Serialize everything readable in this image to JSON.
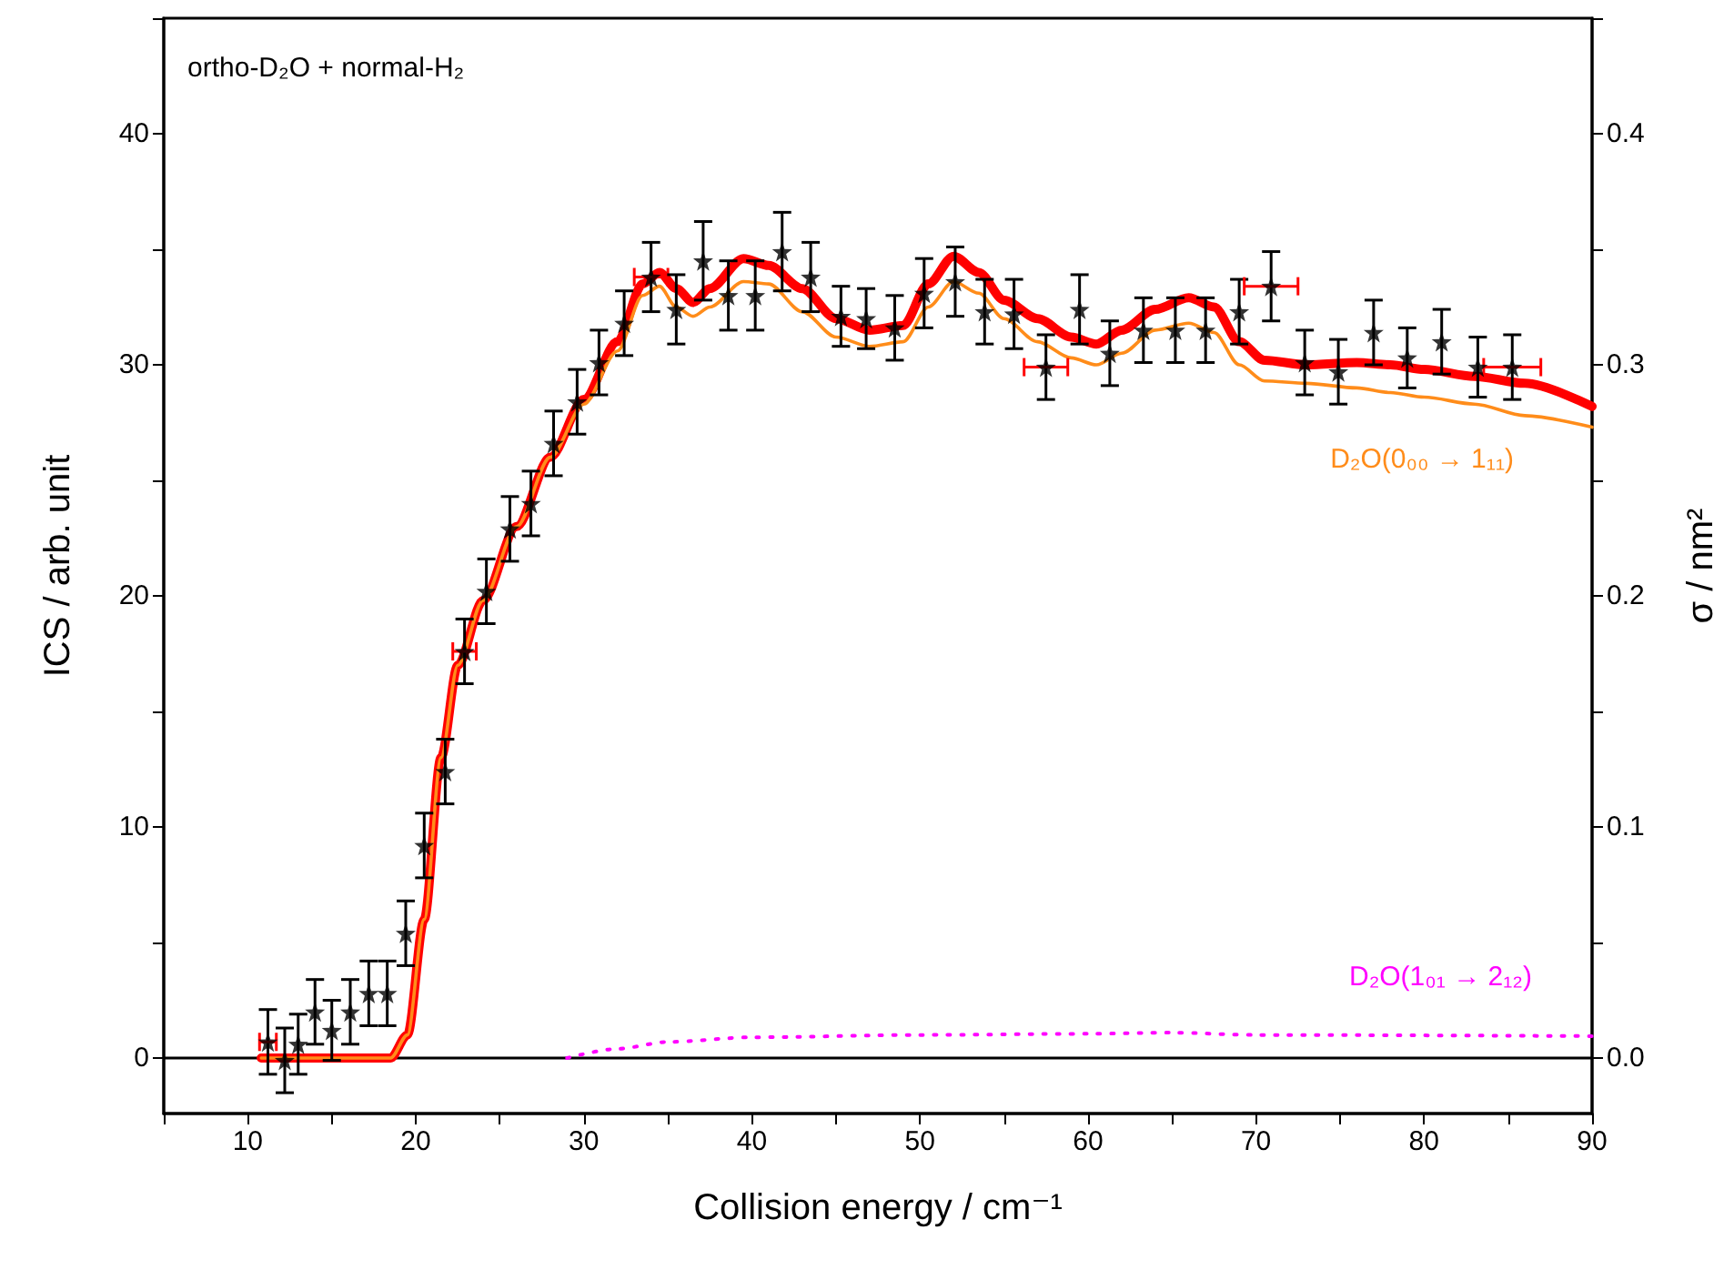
{
  "chart_data": {
    "type": "scatter",
    "xlabel": "Collision energy / cm⁻¹",
    "ylabel": "ICS / arb. unit",
    "y2label": "σ / nm²",
    "annotations": [
      "ortho-D₂O + normal-H₂"
    ],
    "xlim": [
      5,
      90
    ],
    "xticks": [
      {
        "value": 5,
        "label": null
      },
      10,
      {
        "value": 15,
        "label": null
      },
      20,
      {
        "value": 25,
        "label": null
      },
      30,
      {
        "value": 35,
        "label": null
      },
      40,
      {
        "value": 45,
        "label": null
      },
      50,
      {
        "value": 55,
        "label": null
      },
      60,
      {
        "value": 65,
        "label": null
      },
      70,
      {
        "value": 75,
        "label": null
      },
      80,
      {
        "value": 85,
        "label": null
      },
      90
    ],
    "ylim": [
      -2.4,
      45
    ],
    "yticks": [
      0,
      {
        "value": 5,
        "label": null
      },
      10,
      {
        "value": 15,
        "label": null
      },
      20,
      {
        "value": 25,
        "label": null
      },
      30,
      {
        "value": 35,
        "label": null
      },
      40,
      {
        "value": 45,
        "label": null
      }
    ],
    "y2lim": [
      -0.024,
      0.45
    ],
    "y2ticks": [
      {
        "value": 0,
        "label": "0.0"
      },
      {
        "value": 0.05,
        "label": null
      },
      {
        "value": 0.1,
        "label": "0.1"
      },
      {
        "value": 0.15,
        "label": null
      },
      {
        "value": 0.2,
        "label": "0.2"
      },
      {
        "value": 0.25,
        "label": null
      },
      {
        "value": 0.3,
        "label": "0.3"
      },
      {
        "value": 0.35,
        "label": null
      },
      {
        "value": 0.4,
        "label": "0.4"
      },
      {
        "value": 0.45,
        "label": null
      }
    ],
    "grid": false,
    "legend": false,
    "ref_lines": [
      {
        "axis": "y",
        "value": 0,
        "color": "#000000"
      }
    ],
    "series": [
      {
        "color": "#000000",
        "marker": "star",
        "x": [
          11.2,
          12.2,
          13.0,
          14.0,
          15.0,
          16.1,
          17.2,
          18.3,
          19.4,
          20.5,
          21.75,
          22.9,
          24.2,
          25.6,
          26.85,
          28.2,
          29.6,
          30.9,
          32.4,
          34.0,
          35.5,
          37.1,
          38.6,
          40.2,
          41.8,
          43.5,
          45.3,
          46.8,
          48.5,
          50.25,
          52.1,
          53.85,
          55.6,
          57.5,
          59.5,
          61.3,
          63.3,
          65.2,
          67.0,
          69.0,
          70.9,
          72.9,
          74.9,
          77.0,
          79.0,
          81.05,
          83.2,
          85.25
        ],
        "values": [
          0.7,
          -0.1,
          0.6,
          2.0,
          1.2,
          2.0,
          2.8,
          2.8,
          5.4,
          9.2,
          12.4,
          17.6,
          20.2,
          22.9,
          24.0,
          26.6,
          28.4,
          30.1,
          31.8,
          33.8,
          32.4,
          34.5,
          33.0,
          33.0,
          34.9,
          33.8,
          32.1,
          32.0,
          31.6,
          33.1,
          33.6,
          32.3,
          32.2,
          29.9,
          32.4,
          30.5,
          31.5,
          31.5,
          31.5,
          32.3,
          33.4,
          30.1,
          29.7,
          31.4,
          30.3,
          31.0,
          29.9,
          29.9
        ],
        "errors": [
          1.4,
          1.4,
          1.3,
          1.4,
          1.3,
          1.4,
          1.4,
          1.4,
          1.4,
          1.4,
          1.4,
          1.4,
          1.4,
          1.4,
          1.4,
          1.4,
          1.4,
          1.4,
          1.4,
          1.5,
          1.5,
          1.7,
          1.5,
          1.5,
          1.7,
          1.5,
          1.3,
          1.3,
          1.4,
          1.5,
          1.5,
          1.4,
          1.5,
          1.4,
          1.5,
          1.4,
          1.4,
          1.4,
          1.4,
          1.4,
          1.5,
          1.4,
          1.4,
          1.4,
          1.3,
          1.4,
          1.3,
          1.4
        ],
        "xerrors": [
          0.5,
          null,
          null,
          null,
          null,
          null,
          null,
          null,
          null,
          null,
          null,
          0.7,
          null,
          null,
          null,
          null,
          null,
          null,
          null,
          1.0,
          null,
          null,
          null,
          null,
          null,
          null,
          null,
          null,
          null,
          null,
          null,
          null,
          null,
          1.3,
          null,
          null,
          null,
          null,
          null,
          null,
          1.6,
          null,
          null,
          null,
          null,
          null,
          null,
          1.7
        ]
      },
      {
        "type": "line",
        "color": "#ff0000",
        "marker": "none",
        "line_style": "solid",
        "x": [
          10.8,
          18.5,
          19.5,
          20.5,
          21.5,
          22.5,
          24,
          26,
          28,
          30,
          32,
          33.5,
          34.5,
          35.5,
          36.5,
          37.5,
          39.5,
          41,
          43,
          45,
          47,
          49,
          50.5,
          52,
          53.5,
          55,
          57,
          59,
          60.5,
          62,
          64,
          66,
          67.5,
          69,
          70.5,
          73,
          76,
          78,
          80,
          83,
          86,
          90
        ],
        "values": [
          0,
          0,
          1,
          6,
          13,
          17,
          19.8,
          23,
          26,
          28.5,
          31,
          33.5,
          34,
          33.3,
          32.7,
          33.3,
          34.6,
          34.3,
          33.3,
          32,
          31.5,
          31.7,
          33.5,
          34.7,
          34,
          32.8,
          32,
          31.2,
          30.9,
          31.5,
          32.4,
          32.9,
          32.5,
          31,
          30.2,
          30,
          30.1,
          30,
          29.8,
          29.5,
          29.2,
          28.2
        ]
      },
      {
        "type": "line",
        "name": "D₂O(0₀₀ → 1₁₁)",
        "color": "#ff8c1a",
        "marker": "none",
        "line_style": "solid",
        "x": [
          10.8,
          18.5,
          19.5,
          20.5,
          21.5,
          22.5,
          24,
          26,
          28,
          30,
          32,
          33.5,
          34.5,
          35.5,
          36.5,
          37.5,
          39.5,
          41,
          43,
          45,
          47,
          49,
          50.5,
          52,
          53.5,
          55,
          57,
          59,
          60.5,
          62,
          64,
          66,
          67.5,
          69,
          70.5,
          73,
          76,
          78,
          80,
          83,
          86,
          90
        ],
        "values": [
          0,
          0,
          1,
          6,
          13,
          17,
          19.8,
          23,
          26,
          28.3,
          30.6,
          33,
          33.4,
          32.5,
          32.1,
          32.5,
          33.6,
          33.5,
          32.3,
          31.2,
          30.8,
          31,
          32.5,
          33.6,
          33.1,
          32,
          31,
          30.3,
          30,
          30.5,
          31.5,
          31.8,
          31.4,
          30,
          29.3,
          29.2,
          29,
          28.8,
          28.6,
          28.3,
          27.8,
          27.3
        ]
      },
      {
        "type": "line",
        "name": "D₂O(1₀₁ → 2₁₂)",
        "color": "#ff00ff",
        "marker": "none",
        "line_style": "dotted",
        "x": [
          29,
          32,
          35,
          40,
          50,
          60,
          65,
          70,
          90
        ],
        "values": [
          0,
          0.4,
          0.7,
          0.9,
          1.0,
          1.05,
          1.1,
          1.0,
          0.95
        ]
      }
    ]
  }
}
